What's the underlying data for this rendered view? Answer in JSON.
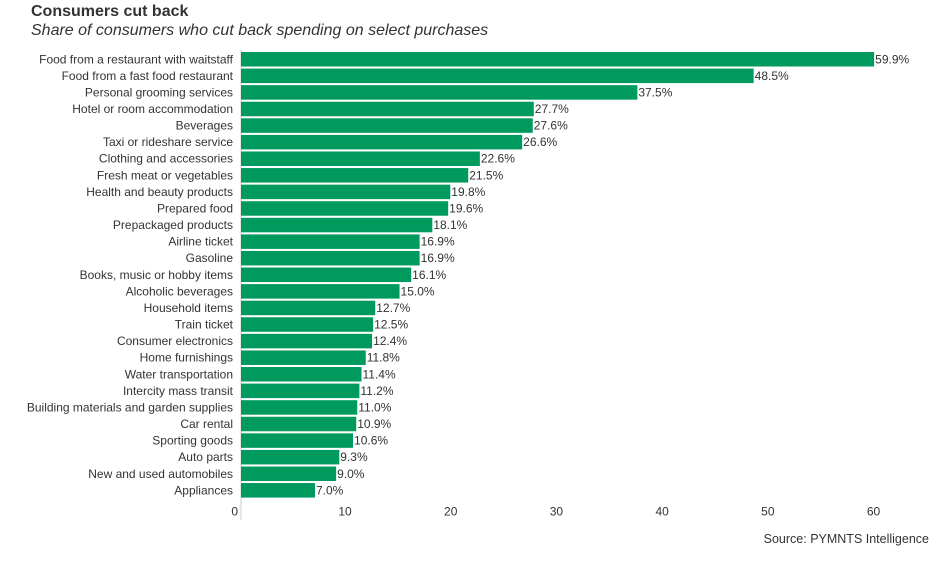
{
  "chart_data": {
    "type": "bar",
    "orientation": "horizontal",
    "title": "Consumers cut back",
    "subtitle": "Share of consumers who cut back spending on select purchases",
    "source": "Source: PYMNTS Intelligence",
    "categories": [
      "Food from a restaurant with waitstaff",
      "Food from a fast food restaurant",
      "Personal grooming services",
      "Hotel or room accommodation",
      "Beverages",
      "Taxi or rideshare service",
      "Clothing and accessories",
      "Fresh meat or vegetables",
      "Health and beauty products",
      "Prepared food",
      "Prepackaged products",
      "Airline ticket",
      "Gasoline",
      "Books, music or hobby items",
      "Alcoholic beverages",
      "Household items",
      "Train ticket",
      "Consumer electronics",
      "Home furnishings",
      "Water transportation",
      "Intercity mass transit",
      "Building materials and garden supplies",
      "Car rental",
      "Sporting goods",
      "Auto parts",
      "New and used automobiles",
      "Appliances"
    ],
    "values": [
      59.9,
      48.5,
      37.5,
      27.7,
      27.6,
      26.6,
      22.6,
      21.5,
      19.8,
      19.6,
      18.1,
      16.9,
      16.9,
      16.1,
      15.0,
      12.7,
      12.5,
      12.4,
      11.8,
      11.4,
      11.2,
      11.0,
      10.9,
      10.6,
      9.3,
      9.0,
      7.0
    ],
    "data_labels": [
      "59.9%",
      "48.5%",
      "37.5%",
      "27.7%",
      "27.6%",
      "26.6%",
      "22.6%",
      "21.5%",
      "19.8%",
      "19.6%",
      "18.1%",
      "16.9%",
      "16.9%",
      "16.1%",
      "15.0%",
      "12.7%",
      "12.5%",
      "12.4%",
      "11.8%",
      "11.4%",
      "11.2%",
      "11.0%",
      "10.9%",
      "10.6%",
      "9.3%",
      "9.0%",
      "7.0%"
    ],
    "xticks": [
      0,
      10,
      20,
      30,
      40,
      50,
      60
    ],
    "xlim": [
      0,
      60.5
    ],
    "grid": false,
    "bar_color": "#009a5e"
  }
}
